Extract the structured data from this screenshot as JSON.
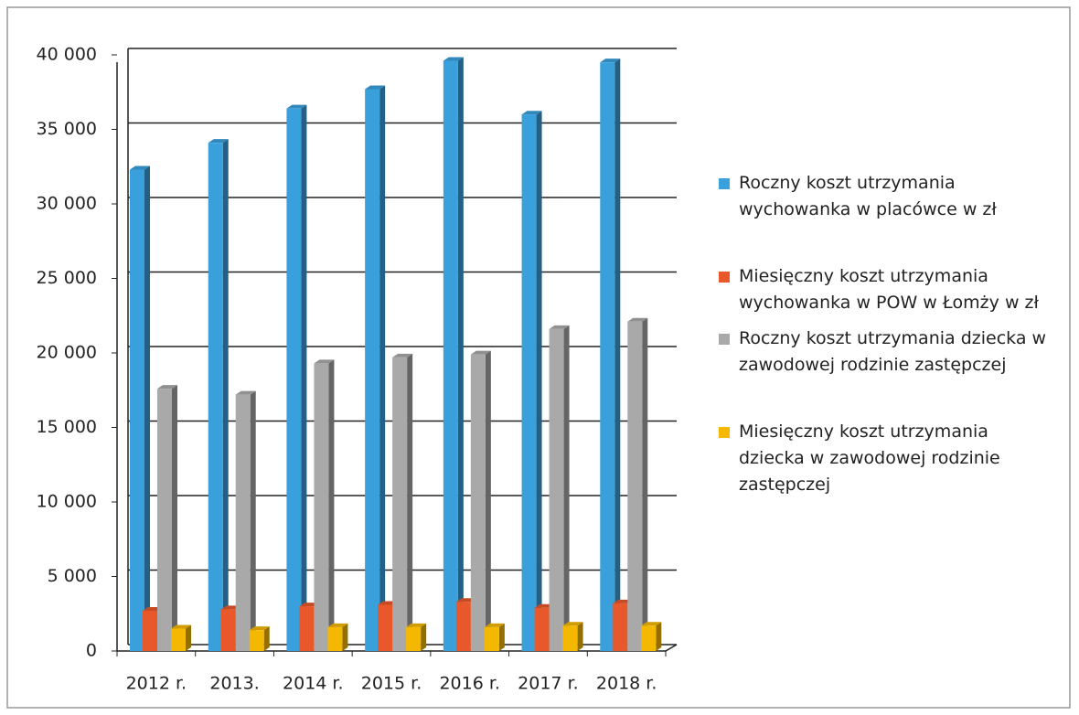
{
  "chart_data": {
    "type": "bar",
    "categories": [
      "2012 r.",
      "2013.",
      "2014 r.",
      "2015 r.",
      "2016 r.",
      "2017 r.",
      "2018 r."
    ],
    "series": [
      {
        "name": "Roczny koszt utrzymania wychowanka w placówce w zł",
        "color": "#3aa0dc",
        "values": [
          32300,
          34100,
          36400,
          37700,
          39600,
          36000,
          39500
        ]
      },
      {
        "name": "Miesięczny koszt utrzymania wychowanka w POW w Łomży w zł",
        "color": "#e8582a",
        "values": [
          2700,
          2800,
          3000,
          3100,
          3300,
          2900,
          3200
        ]
      },
      {
        "name": "Roczny koszt utrzymania dziecka w zawodowej rodzinie zastępczej",
        "color": "#a9a9a9",
        "values": [
          17600,
          17200,
          19300,
          19700,
          19900,
          21600,
          22100
        ]
      },
      {
        "name": "Miesięczny koszt utrzymania dziecka w zawodowej rodzinie zastępczej",
        "color": "#f5b800",
        "values": [
          1500,
          1400,
          1600,
          1600,
          1600,
          1700,
          1700
        ]
      }
    ],
    "ylim": [
      0,
      40000
    ],
    "yticks": [
      0,
      {
        "value": 5000,
        "label": "5 000"
      },
      {
        "value": 10000,
        "label": "10 000"
      },
      {
        "value": 15000,
        "label": "15 000"
      },
      {
        "value": 20000,
        "label": "20 000"
      },
      {
        "value": 25000,
        "label": "25 000"
      },
      {
        "value": 30000,
        "label": "30 000"
      },
      {
        "value": 35000,
        "label": "35 000"
      },
      {
        "value": 40000,
        "label": "40 000"
      }
    ],
    "grid": true,
    "legend": "right"
  }
}
